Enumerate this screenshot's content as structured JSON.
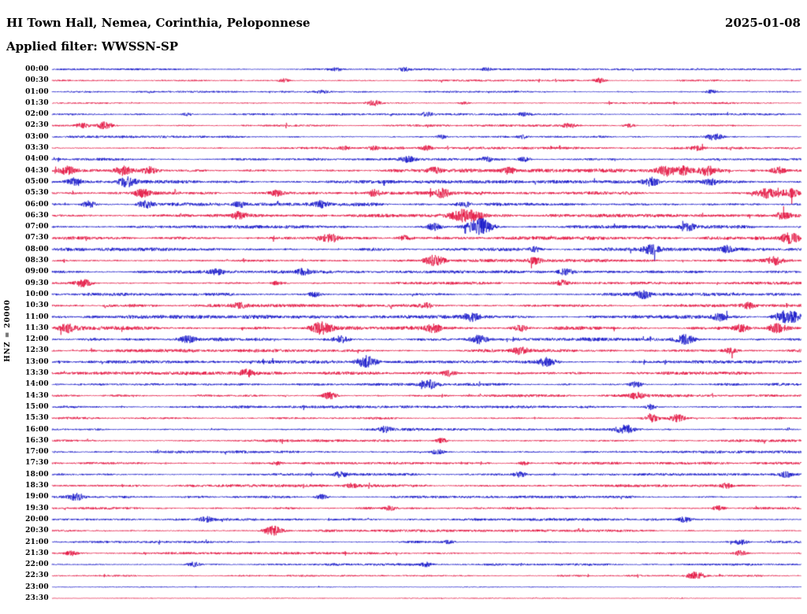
{
  "header": {
    "title": "HI Town Hall, Nemea, Corinthia, Peloponnese",
    "date": "2025-01-08",
    "filter_label": "Applied filter: WWSSN-SP"
  },
  "axis": {
    "scale_label": "HNZ = 20000"
  },
  "chart_data": {
    "type": "line",
    "subtype": "helicorder-seismogram",
    "title": "HI Town Hall, Nemea, Corinthia, Peloponnese",
    "date": "2025-01-08",
    "filter": "WWSSN-SP",
    "channel_scale_label": "HNZ = 20000",
    "minutes_per_row": 30,
    "time_range": [
      "00:00",
      "24:00"
    ],
    "legend_position": "none",
    "grid": false,
    "colors": {
      "blue": "#1414c8",
      "red": "#e3123f"
    },
    "color_rule": "rows alternate blue (even) / red (odd) starting blue at 00:00",
    "description": "48 half-hour traces of continuous seismic noise; noise amplitude in relative pixels, events listed as [position_fraction_of_row, relative_amplitude].",
    "rows": [
      {
        "time": "00:00",
        "noise": 0.7,
        "events": [
          [
            0.38,
            2
          ],
          [
            0.47,
            2.2
          ],
          [
            0.58,
            1.8
          ]
        ]
      },
      {
        "time": "00:30",
        "noise": 0.7,
        "events": [
          [
            0.31,
            2.4
          ],
          [
            0.73,
            3
          ]
        ]
      },
      {
        "time": "01:00",
        "noise": 0.7,
        "events": [
          [
            0.36,
            1.8
          ],
          [
            0.88,
            2.4
          ]
        ]
      },
      {
        "time": "01:30",
        "noise": 0.7,
        "events": [
          [
            0.43,
            3.4
          ],
          [
            0.55,
            1.8
          ]
        ]
      },
      {
        "time": "02:00",
        "noise": 0.8,
        "events": [
          [
            0.18,
            2
          ],
          [
            0.5,
            2.4
          ],
          [
            0.63,
            2
          ]
        ]
      },
      {
        "time": "02:30",
        "noise": 0.8,
        "events": [
          [
            0.04,
            3
          ],
          [
            0.07,
            4.4
          ],
          [
            0.69,
            3
          ],
          [
            0.77,
            2.4
          ]
        ]
      },
      {
        "time": "03:00",
        "noise": 0.9,
        "events": [
          [
            0.52,
            2.4
          ],
          [
            0.63,
            2.4
          ],
          [
            0.885,
            4.4
          ]
        ]
      },
      {
        "time": "03:30",
        "noise": 0.9,
        "events": [
          [
            0.39,
            2.4
          ],
          [
            0.43,
            2.4
          ],
          [
            0.5,
            2.4
          ],
          [
            0.86,
            3
          ]
        ]
      },
      {
        "time": "04:00",
        "noise": 1.0,
        "events": [
          [
            0.475,
            3.4
          ],
          [
            0.58,
            3
          ],
          [
            0.63,
            3
          ]
        ]
      },
      {
        "time": "04:30",
        "noise": 1.4,
        "events": [
          [
            0.02,
            4
          ],
          [
            0.095,
            5
          ],
          [
            0.13,
            4
          ],
          [
            0.51,
            3.4
          ],
          [
            0.61,
            3.4
          ],
          [
            0.82,
            6
          ],
          [
            0.845,
            5
          ],
          [
            0.875,
            6
          ],
          [
            0.97,
            4
          ]
        ]
      },
      {
        "time": "05:00",
        "noise": 1.3,
        "events": [
          [
            0.03,
            5
          ],
          [
            0.1,
            6
          ],
          [
            0.8,
            5
          ],
          [
            0.88,
            3
          ]
        ]
      },
      {
        "time": "05:30",
        "noise": 1.3,
        "events": [
          [
            0.12,
            4
          ],
          [
            0.3,
            3.4
          ],
          [
            0.43,
            4
          ],
          [
            0.52,
            5
          ],
          [
            0.955,
            6
          ],
          [
            0.985,
            5
          ]
        ]
      },
      {
        "time": "06:00",
        "noise": 1.3,
        "events": [
          [
            0.05,
            4
          ],
          [
            0.125,
            4.4
          ],
          [
            0.25,
            3.4
          ],
          [
            0.36,
            4.4
          ],
          [
            0.55,
            4
          ]
        ]
      },
      {
        "time": "06:30",
        "noise": 1.3,
        "events": [
          [
            0.25,
            4
          ],
          [
            0.545,
            6.4
          ],
          [
            0.565,
            5
          ],
          [
            0.975,
            4.4
          ]
        ]
      },
      {
        "time": "07:00",
        "noise": 1.3,
        "events": [
          [
            0.51,
            4.4
          ],
          [
            0.565,
            7
          ],
          [
            0.578,
            6
          ],
          [
            0.85,
            3.4
          ]
        ]
      },
      {
        "time": "07:30",
        "noise": 1.3,
        "events": [
          [
            0.37,
            5
          ],
          [
            0.47,
            3.4
          ],
          [
            0.985,
            6.4
          ]
        ]
      },
      {
        "time": "08:00",
        "noise": 1.3,
        "events": [
          [
            0.645,
            3.4
          ],
          [
            0.8,
            5
          ],
          [
            0.9,
            3.4
          ]
        ]
      },
      {
        "time": "08:30",
        "noise": 1.2,
        "events": [
          [
            0.51,
            6.4
          ],
          [
            0.645,
            3.4
          ],
          [
            0.965,
            4.4
          ]
        ]
      },
      {
        "time": "09:00",
        "noise": 1.2,
        "events": [
          [
            0.22,
            3.4
          ],
          [
            0.335,
            3.4
          ],
          [
            0.685,
            3.4
          ]
        ]
      },
      {
        "time": "09:30",
        "noise": 1.1,
        "events": [
          [
            0.042,
            5
          ],
          [
            0.3,
            2.4
          ],
          [
            0.68,
            3
          ]
        ]
      },
      {
        "time": "10:00",
        "noise": 1.2,
        "events": [
          [
            0.35,
            3.4
          ],
          [
            0.79,
            4.4
          ]
        ]
      },
      {
        "time": "10:30",
        "noise": 1.2,
        "events": [
          [
            0.25,
            3
          ],
          [
            0.5,
            3
          ],
          [
            0.93,
            3
          ]
        ]
      },
      {
        "time": "11:00",
        "noise": 1.4,
        "events": [
          [
            0.56,
            4.4
          ],
          [
            0.89,
            4
          ],
          [
            0.975,
            6
          ],
          [
            0.99,
            5
          ]
        ]
      },
      {
        "time": "11:30",
        "noise": 1.5,
        "events": [
          [
            0.02,
            4.4
          ],
          [
            0.36,
            6.4
          ],
          [
            0.51,
            4.4
          ],
          [
            0.625,
            4
          ],
          [
            0.92,
            4.4
          ],
          [
            0.97,
            6.4
          ]
        ]
      },
      {
        "time": "12:00",
        "noise": 1.4,
        "events": [
          [
            0.18,
            4
          ],
          [
            0.385,
            5
          ],
          [
            0.57,
            5
          ],
          [
            0.845,
            5.4
          ]
        ]
      },
      {
        "time": "12:30",
        "noise": 1.2,
        "events": [
          [
            0.625,
            4
          ],
          [
            0.905,
            3.4
          ]
        ]
      },
      {
        "time": "13:00",
        "noise": 1.2,
        "events": [
          [
            0.42,
            7
          ],
          [
            0.66,
            5
          ]
        ]
      },
      {
        "time": "13:30",
        "noise": 1.2,
        "events": [
          [
            0.26,
            4
          ],
          [
            0.53,
            3
          ]
        ]
      },
      {
        "time": "14:00",
        "noise": 1.1,
        "events": [
          [
            0.505,
            5
          ],
          [
            0.78,
            3.4
          ]
        ]
      },
      {
        "time": "14:30",
        "noise": 1.1,
        "events": [
          [
            0.37,
            4
          ],
          [
            0.78,
            4
          ]
        ]
      },
      {
        "time": "15:00",
        "noise": 1.0,
        "events": [
          [
            0.8,
            3
          ]
        ]
      },
      {
        "time": "15:30",
        "noise": 1.0,
        "events": [
          [
            0.8,
            4.4
          ],
          [
            0.835,
            4
          ]
        ]
      },
      {
        "time": "16:00",
        "noise": 1.1,
        "events": [
          [
            0.445,
            3.4
          ],
          [
            0.765,
            5
          ]
        ]
      },
      {
        "time": "16:30",
        "noise": 1.0,
        "events": [
          [
            0.52,
            3
          ]
        ]
      },
      {
        "time": "17:00",
        "noise": 1.0,
        "events": [
          [
            0.515,
            3.4
          ]
        ]
      },
      {
        "time": "17:30",
        "noise": 1.0,
        "events": [
          [
            0.3,
            2.4
          ],
          [
            0.63,
            2.4
          ]
        ]
      },
      {
        "time": "18:00",
        "noise": 1.0,
        "events": [
          [
            0.385,
            3.4
          ],
          [
            0.625,
            3.4
          ],
          [
            0.98,
            3
          ]
        ]
      },
      {
        "time": "18:30",
        "noise": 1.0,
        "events": [
          [
            0.4,
            2.4
          ],
          [
            0.9,
            3
          ]
        ]
      },
      {
        "time": "19:00",
        "noise": 1.0,
        "events": [
          [
            0.032,
            4.4
          ],
          [
            0.36,
            3
          ]
        ]
      },
      {
        "time": "19:30",
        "noise": 0.9,
        "events": [
          [
            0.45,
            2.4
          ],
          [
            0.89,
            3
          ]
        ]
      },
      {
        "time": "20:00",
        "noise": 1.0,
        "events": [
          [
            0.205,
            3.4
          ],
          [
            0.845,
            3.4
          ]
        ]
      },
      {
        "time": "20:30",
        "noise": 1.0,
        "events": [
          [
            0.295,
            6.4
          ]
        ]
      },
      {
        "time": "21:00",
        "noise": 0.9,
        "events": [
          [
            0.53,
            2.4
          ],
          [
            0.92,
            3.4
          ]
        ]
      },
      {
        "time": "21:30",
        "noise": 0.9,
        "events": [
          [
            0.025,
            3
          ],
          [
            0.92,
            3.4
          ]
        ]
      },
      {
        "time": "22:00",
        "noise": 0.9,
        "events": [
          [
            0.19,
            3.4
          ],
          [
            0.5,
            2.4
          ]
        ]
      },
      {
        "time": "22:30",
        "noise": 0.7,
        "events": [
          [
            0.86,
            5
          ]
        ]
      },
      {
        "time": "23:00",
        "noise": 0.35,
        "events": []
      },
      {
        "time": "23:30",
        "noise": 0.35,
        "events": []
      }
    ]
  }
}
